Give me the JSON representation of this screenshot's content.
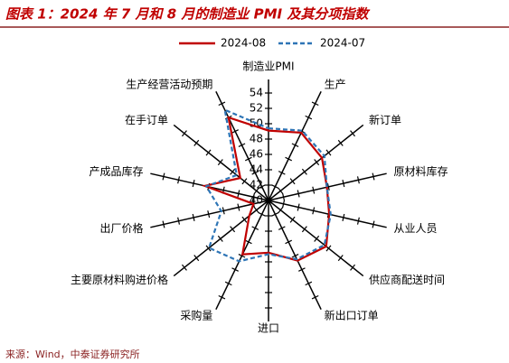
{
  "chart_data": {
    "type": "radar",
    "title": "图表 1：2024 年 7 月和 8 月的制造业 PMI 及其分项指数",
    "categories": [
      "制造业PMI",
      "生产",
      "新订单",
      "原材料库存",
      "从业人员",
      "供应商配送时间",
      "新出口订单",
      "进口",
      "采购量",
      "主要原材料购进价格",
      "出厂价格",
      "产成品库存",
      "在手订单",
      "生产经营活动预期"
    ],
    "series": [
      {
        "name": "2024-08",
        "color": "#c00000",
        "dash": false,
        "values": [
          49.1,
          49.8,
          48.9,
          47.8,
          48.1,
          49.6,
          48.7,
          46.8,
          47.8,
          43.2,
          42.0,
          48.5,
          44.7,
          52.0
        ]
      },
      {
        "name": "2024-07",
        "color": "#2e75b6",
        "dash": true,
        "values": [
          49.4,
          50.1,
          49.3,
          47.8,
          48.3,
          49.3,
          48.5,
          47.0,
          48.8,
          49.9,
          46.3,
          48.3,
          45.3,
          53.1
        ]
      }
    ],
    "rlim": [
      40,
      54
    ],
    "rticks": [
      40,
      42,
      44,
      46,
      48,
      50,
      52,
      54
    ]
  },
  "source": "来源：Wind，中泰证券研究所"
}
